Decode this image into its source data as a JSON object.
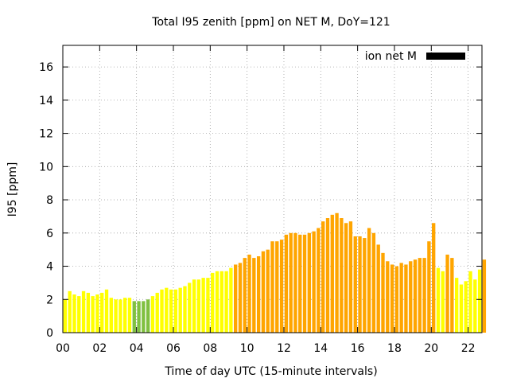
{
  "chart_data": {
    "type": "bar",
    "title": "Total I95 zenith [ppm] on NET M, DoY=121",
    "xlabel": "Time of day UTC (15-minute intervals)",
    "ylabel": "I95 [ppm]",
    "ylim": [
      0,
      17.3
    ],
    "xlim": [
      0,
      22.75
    ],
    "y_ticks": [
      "0",
      "2",
      "4",
      "6",
      "8",
      "10",
      "12",
      "14",
      "16"
    ],
    "x_ticks": [
      "00",
      "02",
      "04",
      "06",
      "08",
      "10",
      "12",
      "14",
      "16",
      "18",
      "20",
      "22"
    ],
    "grid": true,
    "legend": {
      "label": "ion net M",
      "placement": "top-right",
      "color": "#000000"
    },
    "bar_colors": {
      "yellow": "#ffff00",
      "green": "#80c040",
      "orange": "#ffa500"
    },
    "interval_hours": 0.25,
    "values": [
      2.0,
      2.5,
      2.3,
      2.2,
      2.5,
      2.4,
      2.2,
      2.3,
      2.4,
      2.6,
      2.1,
      2.0,
      2.0,
      2.1,
      2.1,
      1.9,
      1.9,
      1.9,
      2.0,
      2.2,
      2.4,
      2.6,
      2.7,
      2.6,
      2.6,
      2.7,
      2.8,
      3.0,
      3.2,
      3.2,
      3.3,
      3.3,
      3.6,
      3.7,
      3.7,
      3.7,
      3.9,
      4.1,
      4.2,
      4.5,
      4.7,
      4.5,
      4.6,
      4.9,
      5.0,
      5.5,
      5.5,
      5.6,
      5.9,
      6.0,
      6.0,
      5.9,
      5.9,
      6.0,
      6.1,
      6.3,
      6.7,
      6.9,
      7.1,
      7.2,
      6.9,
      6.6,
      6.7,
      5.8,
      5.8,
      5.7,
      6.3,
      6.0,
      5.3,
      4.8,
      4.3,
      4.1,
      4.0,
      4.2,
      4.1,
      4.3,
      4.4,
      4.5,
      4.5,
      5.5,
      6.6,
      3.9,
      3.7,
      4.7,
      4.5,
      3.3,
      2.9,
      3.1,
      3.7,
      3.2,
      3.8,
      4.4
    ],
    "colors": [
      "yellow",
      "yellow",
      "yellow",
      "yellow",
      "yellow",
      "yellow",
      "yellow",
      "yellow",
      "yellow",
      "yellow",
      "yellow",
      "yellow",
      "yellow",
      "yellow",
      "yellow",
      "green",
      "green",
      "green",
      "green",
      "yellow",
      "yellow",
      "yellow",
      "yellow",
      "yellow",
      "yellow",
      "yellow",
      "yellow",
      "yellow",
      "yellow",
      "yellow",
      "yellow",
      "yellow",
      "yellow",
      "yellow",
      "yellow",
      "yellow",
      "yellow",
      "orange",
      "orange",
      "orange",
      "orange",
      "orange",
      "orange",
      "orange",
      "orange",
      "orange",
      "orange",
      "orange",
      "orange",
      "orange",
      "orange",
      "orange",
      "orange",
      "orange",
      "orange",
      "orange",
      "orange",
      "orange",
      "orange",
      "orange",
      "orange",
      "orange",
      "orange",
      "orange",
      "orange",
      "orange",
      "orange",
      "orange",
      "orange",
      "orange",
      "orange",
      "orange",
      "orange",
      "orange",
      "orange",
      "orange",
      "orange",
      "orange",
      "orange",
      "orange",
      "orange",
      "yellow",
      "yellow",
      "orange",
      "orange",
      "yellow",
      "yellow",
      "yellow",
      "yellow",
      "yellow",
      "yellow",
      "orange"
    ]
  }
}
